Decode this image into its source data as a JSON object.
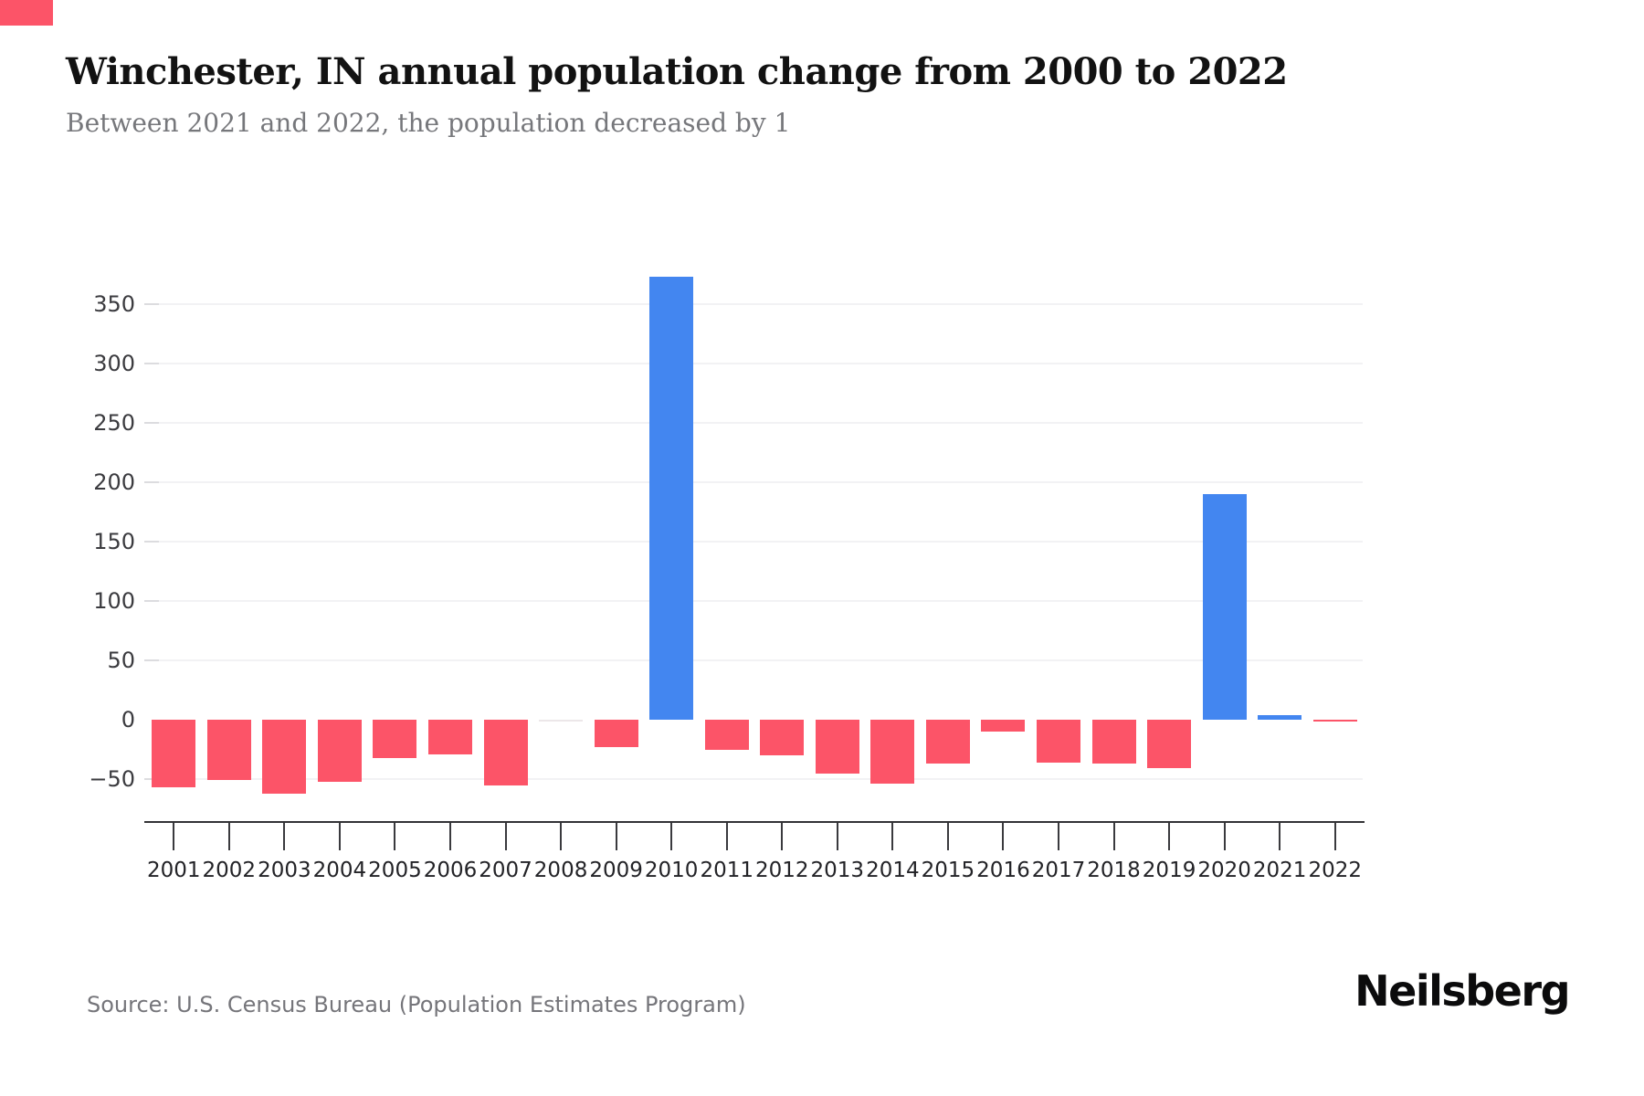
{
  "page": {
    "title": "Winchester, IN annual population change from 2000 to 2022",
    "subtitle": "Between 2021 and 2022, the population decreased by 1",
    "source": "Source: U.S. Census Bureau (Population Estimates Program)",
    "brand": "Neilsberg"
  },
  "chart_data": {
    "type": "bar",
    "title": "Winchester, IN annual population change from 2000 to 2022",
    "subtitle": "Between 2021 and 2022, the population decreased by 1",
    "xlabel": "",
    "ylabel": "",
    "categories": [
      "2001",
      "2002",
      "2003",
      "2004",
      "2005",
      "2006",
      "2007",
      "2008",
      "2009",
      "2010",
      "2011",
      "2012",
      "2013",
      "2014",
      "2015",
      "2016",
      "2017",
      "2018",
      "2019",
      "2020",
      "2021",
      "2022"
    ],
    "values": [
      -57,
      -51,
      -62,
      -52,
      -32,
      -29,
      -55,
      0,
      -23,
      373,
      -25,
      -30,
      -45,
      -54,
      -37,
      -10,
      -36,
      -37,
      -41,
      190,
      4,
      -1
    ],
    "ylim": [
      -75,
      400
    ],
    "yticks": [
      {
        "value": -50,
        "label": "−50"
      },
      {
        "value": 0,
        "label": "0"
      },
      {
        "value": 50,
        "label": "50"
      },
      {
        "value": 100,
        "label": "100"
      },
      {
        "value": 150,
        "label": "150"
      },
      {
        "value": 200,
        "label": "200"
      },
      {
        "value": 250,
        "label": "250"
      },
      {
        "value": 300,
        "label": "300"
      },
      {
        "value": 350,
        "label": "350"
      }
    ],
    "grid": "horizontal light-gray gridlines at every y tick except 0",
    "legend": "none",
    "colors": {
      "positive": "#4386F0",
      "negative": "#FC5468",
      "zero_bar": "#ece7e9",
      "gridline": "#f2f2f4",
      "axis": "#323236",
      "tick_label": "#3b3b3f"
    }
  }
}
